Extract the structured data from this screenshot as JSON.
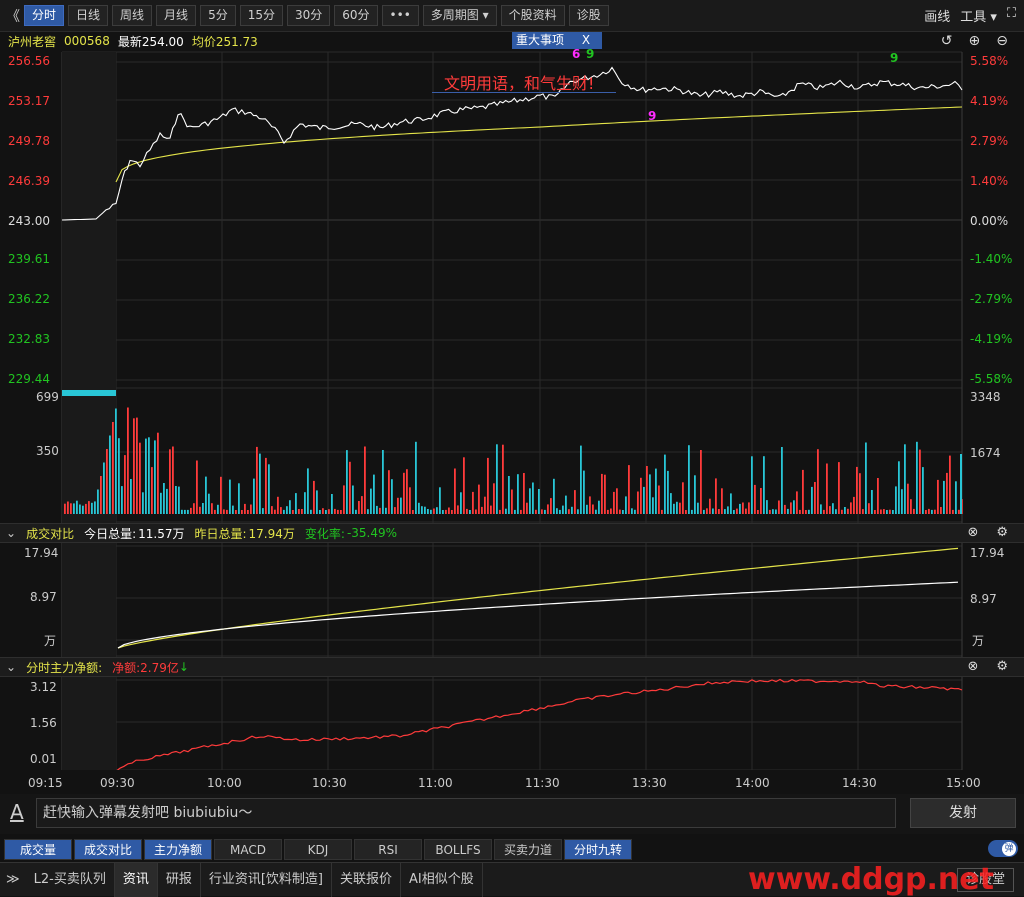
{
  "toolbar": {
    "left_arrows": "《",
    "periods": [
      "分时",
      "日线",
      "周线",
      "月线",
      "5分",
      "15分",
      "30分",
      "60分",
      "•••",
      "多周期图 ▾",
      "个股资料",
      "诊股"
    ],
    "right_tools": [
      "画线",
      "工具 ▾"
    ]
  },
  "stock": {
    "name": "泸州老窖",
    "code": "000568",
    "latest_label": "最新254.00",
    "avg_label": "均价251.73",
    "event_tag": "重大事项",
    "event_close": "X",
    "slogan": "文明用语，和气生财!"
  },
  "price_axis": {
    "left": [
      "256.56",
      "253.17",
      "249.78",
      "246.39",
      "243.00",
      "239.61",
      "236.22",
      "232.83",
      "229.44"
    ],
    "right": [
      "5.58%",
      "4.19%",
      "2.79%",
      "1.40%",
      "0.00%",
      "-1.40%",
      "-2.79%",
      "-4.19%",
      "-5.58%"
    ]
  },
  "volume_axis": {
    "left": [
      "699",
      "350"
    ],
    "right": [
      "3348",
      "1674"
    ]
  },
  "compare_panel": {
    "title": "成交对比",
    "today_label": "今日总量:",
    "today_value": "11.57万",
    "yesterday_label": "昨日总量:",
    "yesterday_value": "17.94万",
    "change_label": "变化率:",
    "change_value": "-35.49%",
    "axis_left": [
      "17.94",
      "8.97",
      "万"
    ],
    "axis_right": [
      "17.94",
      "8.97",
      "万"
    ]
  },
  "flow_panel": {
    "title": "分时主力净额:",
    "net_label": "净额:2.79亿",
    "axis_left": [
      "3.12",
      "1.56",
      "0.01"
    ]
  },
  "time_axis": [
    "09:15",
    "09:30",
    "10:00",
    "10:30",
    "11:00",
    "11:30",
    "13:30",
    "14:00",
    "14:30",
    "15:00"
  ],
  "danmaku": {
    "icon": "A",
    "placeholder": "赶快输入弹幕发射吧 biubiubiu～",
    "send": "发射",
    "toggle": "弹"
  },
  "indicator_tabs": [
    "成交量",
    "成交对比",
    "主力净额",
    "MACD",
    "KDJ",
    "RSI",
    "BOLLFS",
    "买卖力道",
    "分时九转"
  ],
  "bottom_tabs": [
    "L2-买卖队列",
    "资讯",
    "研报",
    "行业资讯[饮料制造]",
    "关联报价",
    "AI相似个股",
    "诊股堂"
  ],
  "watermark": "www.ddgp.net",
  "nine_turn_marks": [
    "6",
    "9",
    "9",
    "9"
  ],
  "colors": {
    "up": "#ff3b3b",
    "down": "#21c421",
    "price": "#ffffff",
    "avg": "#e4e44a",
    "active": "#2f5aa5",
    "magenta": "#ff2bff"
  }
}
